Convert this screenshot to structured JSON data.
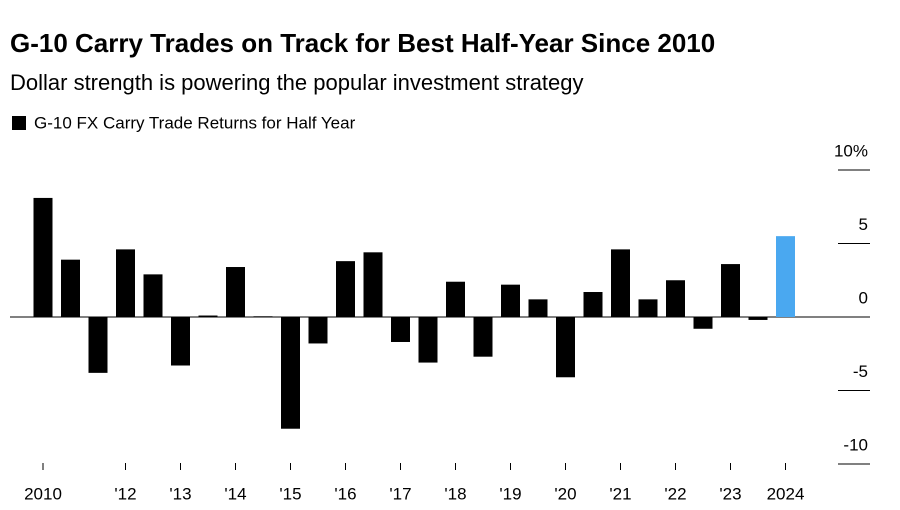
{
  "chart_data": {
    "type": "bar",
    "title": "G-10 Carry Trades on Track for Best Half-Year Since 2010",
    "subtitle": "Dollar strength is powering the popular investment strategy",
    "legend": "G-10 FX Carry Trade Returns for Half Year",
    "categories": [
      "2010",
      null,
      null,
      "'12",
      null,
      "'13",
      null,
      "'14",
      null,
      "'15",
      null,
      "'16",
      null,
      "'17",
      null,
      "'18",
      null,
      "'19",
      null,
      "'20",
      null,
      "'21",
      null,
      "'22",
      null,
      "'23",
      null,
      "2024"
    ],
    "values": [
      8.1,
      3.9,
      -3.8,
      4.6,
      2.9,
      -3.3,
      0.1,
      3.4,
      0.05,
      -7.6,
      -1.8,
      3.8,
      4.4,
      -1.7,
      -3.1,
      2.4,
      -2.7,
      2.2,
      1.2,
      -4.1,
      1.7,
      4.6,
      1.2,
      2.5,
      -0.8,
      3.6,
      -0.2,
      5.5
    ],
    "colors": [
      "#000000",
      "#000000",
      "#000000",
      "#000000",
      "#000000",
      "#000000",
      "#000000",
      "#000000",
      "#000000",
      "#000000",
      "#000000",
      "#000000",
      "#000000",
      "#000000",
      "#000000",
      "#000000",
      "#000000",
      "#000000",
      "#000000",
      "#000000",
      "#000000",
      "#000000",
      "#000000",
      "#000000",
      "#000000",
      "#000000",
      "#000000",
      "#4aa8f0"
    ],
    "ylim": [
      -10,
      10
    ],
    "yticks": [
      {
        "value": 10,
        "label": "10%"
      },
      5,
      0,
      -5,
      -10
    ]
  }
}
